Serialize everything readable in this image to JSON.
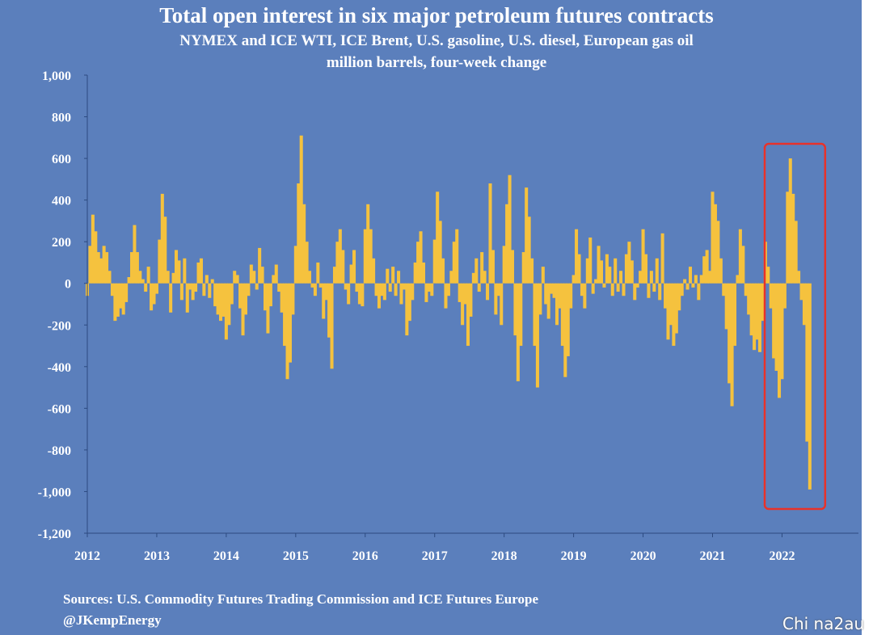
{
  "chart_data": {
    "type": "bar",
    "title": "Total open interest in six major petroleum futures contracts",
    "subtitle": "NYMEX and ICE WTI, ICE Brent, U.S. gasoline, U.S. diesel, European gas oil",
    "ylabel": "million barrels, four-week change",
    "xlabel": "",
    "ylim": [
      -1200,
      1000
    ],
    "yticks": [
      "1,000",
      "800",
      "600",
      "400",
      "200",
      "0",
      "-200",
      "-400",
      "-600",
      "-800",
      "-1,000",
      "-1,200"
    ],
    "xticks": [
      "2012",
      "2013",
      "2014",
      "2015",
      "2016",
      "2017",
      "2018",
      "2019",
      "2020",
      "2021",
      "2022"
    ],
    "xlim": [
      2012,
      2023.1
    ],
    "grid": false,
    "bar_color": "#f5c23e",
    "highlight_color": "#e8322a",
    "highlight_range": [
      2021.75,
      2022.62
    ],
    "series": [
      {
        "values": [
          [
            2012.0,
            -60
          ],
          [
            2012.04,
            180
          ],
          [
            2012.08,
            330
          ],
          [
            2012.12,
            250
          ],
          [
            2012.16,
            150
          ],
          [
            2012.2,
            120
          ],
          [
            2012.24,
            180
          ],
          [
            2012.28,
            150
          ],
          [
            2012.32,
            60
          ],
          [
            2012.36,
            -60
          ],
          [
            2012.4,
            -180
          ],
          [
            2012.44,
            -160
          ],
          [
            2012.48,
            -120
          ],
          [
            2012.52,
            -150
          ],
          [
            2012.56,
            -90
          ],
          [
            2012.6,
            30
          ],
          [
            2012.64,
            150
          ],
          [
            2012.68,
            280
          ],
          [
            2012.72,
            150
          ],
          [
            2012.76,
            60
          ],
          [
            2012.8,
            20
          ],
          [
            2012.84,
            -40
          ],
          [
            2012.88,
            80
          ],
          [
            2012.92,
            -130
          ],
          [
            2012.96,
            -100
          ],
          [
            2013.0,
            -50
          ],
          [
            2013.04,
            210
          ],
          [
            2013.08,
            430
          ],
          [
            2013.12,
            320
          ],
          [
            2013.16,
            60
          ],
          [
            2013.2,
            -140
          ],
          [
            2013.24,
            50
          ],
          [
            2013.28,
            160
          ],
          [
            2013.32,
            110
          ],
          [
            2013.36,
            -80
          ],
          [
            2013.4,
            120
          ],
          [
            2013.44,
            -140
          ],
          [
            2013.48,
            -30
          ],
          [
            2013.52,
            -80
          ],
          [
            2013.56,
            -40
          ],
          [
            2013.6,
            100
          ],
          [
            2013.64,
            120
          ],
          [
            2013.68,
            -60
          ],
          [
            2013.72,
            40
          ],
          [
            2013.76,
            -70
          ],
          [
            2013.8,
            20
          ],
          [
            2013.84,
            -110
          ],
          [
            2013.88,
            -150
          ],
          [
            2013.92,
            -180
          ],
          [
            2013.96,
            -160
          ],
          [
            2014.0,
            -270
          ],
          [
            2014.04,
            -200
          ],
          [
            2014.08,
            -100
          ],
          [
            2014.12,
            60
          ],
          [
            2014.16,
            40
          ],
          [
            2014.2,
            -120
          ],
          [
            2014.24,
            -250
          ],
          [
            2014.28,
            -150
          ],
          [
            2014.32,
            -60
          ],
          [
            2014.36,
            90
          ],
          [
            2014.4,
            60
          ],
          [
            2014.44,
            -30
          ],
          [
            2014.48,
            170
          ],
          [
            2014.52,
            80
          ],
          [
            2014.56,
            -130
          ],
          [
            2014.6,
            -240
          ],
          [
            2014.64,
            -110
          ],
          [
            2014.68,
            40
          ],
          [
            2014.72,
            90
          ],
          [
            2014.76,
            -40
          ],
          [
            2014.8,
            -140
          ],
          [
            2014.84,
            -300
          ],
          [
            2014.88,
            -460
          ],
          [
            2014.92,
            -380
          ],
          [
            2014.96,
            -150
          ],
          [
            2015.0,
            180
          ],
          [
            2015.04,
            480
          ],
          [
            2015.08,
            710
          ],
          [
            2015.12,
            380
          ],
          [
            2015.16,
            200
          ],
          [
            2015.2,
            60
          ],
          [
            2015.24,
            -20
          ],
          [
            2015.28,
            -60
          ],
          [
            2015.32,
            100
          ],
          [
            2015.36,
            -20
          ],
          [
            2015.4,
            -170
          ],
          [
            2015.44,
            -80
          ],
          [
            2015.48,
            -260
          ],
          [
            2015.52,
            -410
          ],
          [
            2015.56,
            80
          ],
          [
            2015.6,
            200
          ],
          [
            2015.64,
            260
          ],
          [
            2015.68,
            160
          ],
          [
            2015.72,
            -30
          ],
          [
            2015.76,
            -100
          ],
          [
            2015.8,
            90
          ],
          [
            2015.84,
            160
          ],
          [
            2015.88,
            -40
          ],
          [
            2015.92,
            -100
          ],
          [
            2015.96,
            -110
          ],
          [
            2016.0,
            260
          ],
          [
            2016.04,
            380
          ],
          [
            2016.08,
            260
          ],
          [
            2016.12,
            120
          ],
          [
            2016.16,
            -60
          ],
          [
            2016.2,
            -120
          ],
          [
            2016.24,
            -60
          ],
          [
            2016.28,
            -80
          ],
          [
            2016.32,
            70
          ],
          [
            2016.36,
            -40
          ],
          [
            2016.4,
            80
          ],
          [
            2016.44,
            -60
          ],
          [
            2016.48,
            60
          ],
          [
            2016.52,
            -100
          ],
          [
            2016.56,
            -30
          ],
          [
            2016.6,
            -250
          ],
          [
            2016.64,
            -180
          ],
          [
            2016.68,
            -80
          ],
          [
            2016.72,
            100
          ],
          [
            2016.76,
            200
          ],
          [
            2016.8,
            250
          ],
          [
            2016.84,
            100
          ],
          [
            2016.88,
            -90
          ],
          [
            2016.92,
            -40
          ],
          [
            2016.96,
            -60
          ],
          [
            2017.0,
            210
          ],
          [
            2017.04,
            440
          ],
          [
            2017.08,
            300
          ],
          [
            2017.12,
            120
          ],
          [
            2017.16,
            -120
          ],
          [
            2017.2,
            -60
          ],
          [
            2017.24,
            60
          ],
          [
            2017.28,
            200
          ],
          [
            2017.32,
            260
          ],
          [
            2017.36,
            -90
          ],
          [
            2017.4,
            -200
          ],
          [
            2017.44,
            -100
          ],
          [
            2017.48,
            -300
          ],
          [
            2017.52,
            -160
          ],
          [
            2017.56,
            50
          ],
          [
            2017.6,
            120
          ],
          [
            2017.64,
            -40
          ],
          [
            2017.68,
            150
          ],
          [
            2017.72,
            60
          ],
          [
            2017.76,
            -80
          ],
          [
            2017.8,
            480
          ],
          [
            2017.84,
            160
          ],
          [
            2017.88,
            -150
          ],
          [
            2017.92,
            -60
          ],
          [
            2017.96,
            -200
          ],
          [
            2018.0,
            180
          ],
          [
            2018.04,
            380
          ],
          [
            2018.08,
            520
          ],
          [
            2018.12,
            160
          ],
          [
            2018.16,
            -250
          ],
          [
            2018.2,
            -470
          ],
          [
            2018.24,
            -300
          ],
          [
            2018.28,
            150
          ],
          [
            2018.32,
            460
          ],
          [
            2018.36,
            320
          ],
          [
            2018.4,
            120
          ],
          [
            2018.44,
            -300
          ],
          [
            2018.48,
            -500
          ],
          [
            2018.52,
            -150
          ],
          [
            2018.56,
            80
          ],
          [
            2018.6,
            -100
          ],
          [
            2018.64,
            -170
          ],
          [
            2018.68,
            -50
          ],
          [
            2018.72,
            -70
          ],
          [
            2018.76,
            -200
          ],
          [
            2018.8,
            -120
          ],
          [
            2018.84,
            -300
          ],
          [
            2018.88,
            -450
          ],
          [
            2018.92,
            -350
          ],
          [
            2018.96,
            -120
          ],
          [
            2019.0,
            40
          ],
          [
            2019.04,
            260
          ],
          [
            2019.08,
            140
          ],
          [
            2019.12,
            -60
          ],
          [
            2019.16,
            -120
          ],
          [
            2019.2,
            120
          ],
          [
            2019.24,
            220
          ],
          [
            2019.28,
            -50
          ],
          [
            2019.32,
            20
          ],
          [
            2019.36,
            180
          ],
          [
            2019.4,
            110
          ],
          [
            2019.44,
            -20
          ],
          [
            2019.48,
            140
          ],
          [
            2019.52,
            80
          ],
          [
            2019.56,
            -60
          ],
          [
            2019.6,
            120
          ],
          [
            2019.64,
            -40
          ],
          [
            2019.68,
            60
          ],
          [
            2019.72,
            -60
          ],
          [
            2019.76,
            140
          ],
          [
            2019.8,
            200
          ],
          [
            2019.84,
            110
          ],
          [
            2019.88,
            -80
          ],
          [
            2019.92,
            -20
          ],
          [
            2019.96,
            60
          ],
          [
            2020.0,
            260
          ],
          [
            2020.04,
            140
          ],
          [
            2020.08,
            -70
          ],
          [
            2020.12,
            60
          ],
          [
            2020.16,
            -40
          ],
          [
            2020.2,
            120
          ],
          [
            2020.24,
            -80
          ],
          [
            2020.28,
            240
          ],
          [
            2020.32,
            -120
          ],
          [
            2020.36,
            -270
          ],
          [
            2020.4,
            -200
          ],
          [
            2020.44,
            -300
          ],
          [
            2020.48,
            -240
          ],
          [
            2020.52,
            -130
          ],
          [
            2020.56,
            -60
          ],
          [
            2020.6,
            20
          ],
          [
            2020.64,
            -30
          ],
          [
            2020.68,
            80
          ],
          [
            2020.72,
            -20
          ],
          [
            2020.76,
            40
          ],
          [
            2020.8,
            -80
          ],
          [
            2020.84,
            40
          ],
          [
            2020.88,
            130
          ],
          [
            2020.92,
            160
          ],
          [
            2020.96,
            60
          ],
          [
            2021.0,
            440
          ],
          [
            2021.04,
            380
          ],
          [
            2021.08,
            300
          ],
          [
            2021.12,
            120
          ],
          [
            2021.16,
            -60
          ],
          [
            2021.2,
            -220
          ],
          [
            2021.24,
            -480
          ],
          [
            2021.28,
            -590
          ],
          [
            2021.32,
            -300
          ],
          [
            2021.36,
            40
          ],
          [
            2021.4,
            260
          ],
          [
            2021.44,
            180
          ],
          [
            2021.48,
            -60
          ],
          [
            2021.52,
            -150
          ],
          [
            2021.56,
            -250
          ],
          [
            2021.6,
            -320
          ],
          [
            2021.64,
            -270
          ],
          [
            2021.68,
            -330
          ],
          [
            2021.72,
            -180
          ],
          [
            2021.76,
            200
          ],
          [
            2021.8,
            80
          ],
          [
            2021.84,
            -120
          ],
          [
            2021.88,
            -360
          ],
          [
            2021.92,
            -420
          ],
          [
            2021.96,
            -550
          ],
          [
            2022.0,
            -460
          ],
          [
            2022.04,
            -120
          ],
          [
            2022.08,
            440
          ],
          [
            2022.12,
            600
          ],
          [
            2022.16,
            430
          ],
          [
            2022.2,
            300
          ],
          [
            2022.24,
            60
          ],
          [
            2022.28,
            -80
          ],
          [
            2022.32,
            -200
          ],
          [
            2022.36,
            -760
          ],
          [
            2022.4,
            -990
          ]
        ]
      }
    ]
  },
  "footer": {
    "sources": "Sources: U.S. Commodity Futures Trading Commission and ICE Futures Europe",
    "handle": "@JKempEnergy"
  },
  "watermark": "Chi na2au"
}
